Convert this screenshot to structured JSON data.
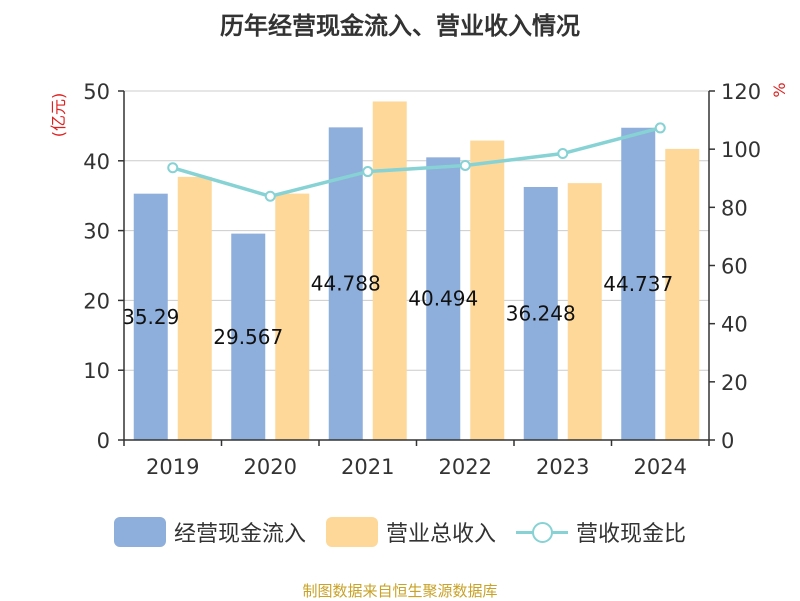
{
  "chart_data": {
    "type": "bar",
    "title": "历年经营现金流入、营业收入情况",
    "categories": [
      "2019",
      "2020",
      "2021",
      "2022",
      "2023",
      "2024"
    ],
    "series": [
      {
        "name": "经营现金流入",
        "type": "bar",
        "axis": "left",
        "color": "#8eaedb",
        "values": [
          35.29,
          29.567,
          44.788,
          40.494,
          36.248,
          44.737
        ],
        "labels": [
          "35.29",
          "29.567",
          "44.788",
          "40.494",
          "36.248",
          "44.737"
        ]
      },
      {
        "name": "营业总收入",
        "type": "bar",
        "axis": "left",
        "color": "#fdd899",
        "values": [
          37.7,
          35.3,
          48.5,
          42.9,
          36.8,
          41.7
        ]
      },
      {
        "name": "营收现金比",
        "type": "line",
        "axis": "right",
        "color": "#86d2d4",
        "values": [
          93.6,
          83.8,
          92.3,
          94.4,
          98.5,
          107.3
        ]
      }
    ],
    "yaxis_left": {
      "label": "(亿元)",
      "min": 0,
      "max": 50,
      "ticks": [
        0,
        10,
        20,
        30,
        40,
        50
      ]
    },
    "yaxis_right": {
      "label": "%",
      "min": 0,
      "max": 120,
      "ticks": [
        0,
        20,
        40,
        60,
        80,
        100,
        120
      ]
    },
    "grid": true,
    "legend_position": "bottom",
    "source": "制图数据来自恒生聚源数据库"
  }
}
